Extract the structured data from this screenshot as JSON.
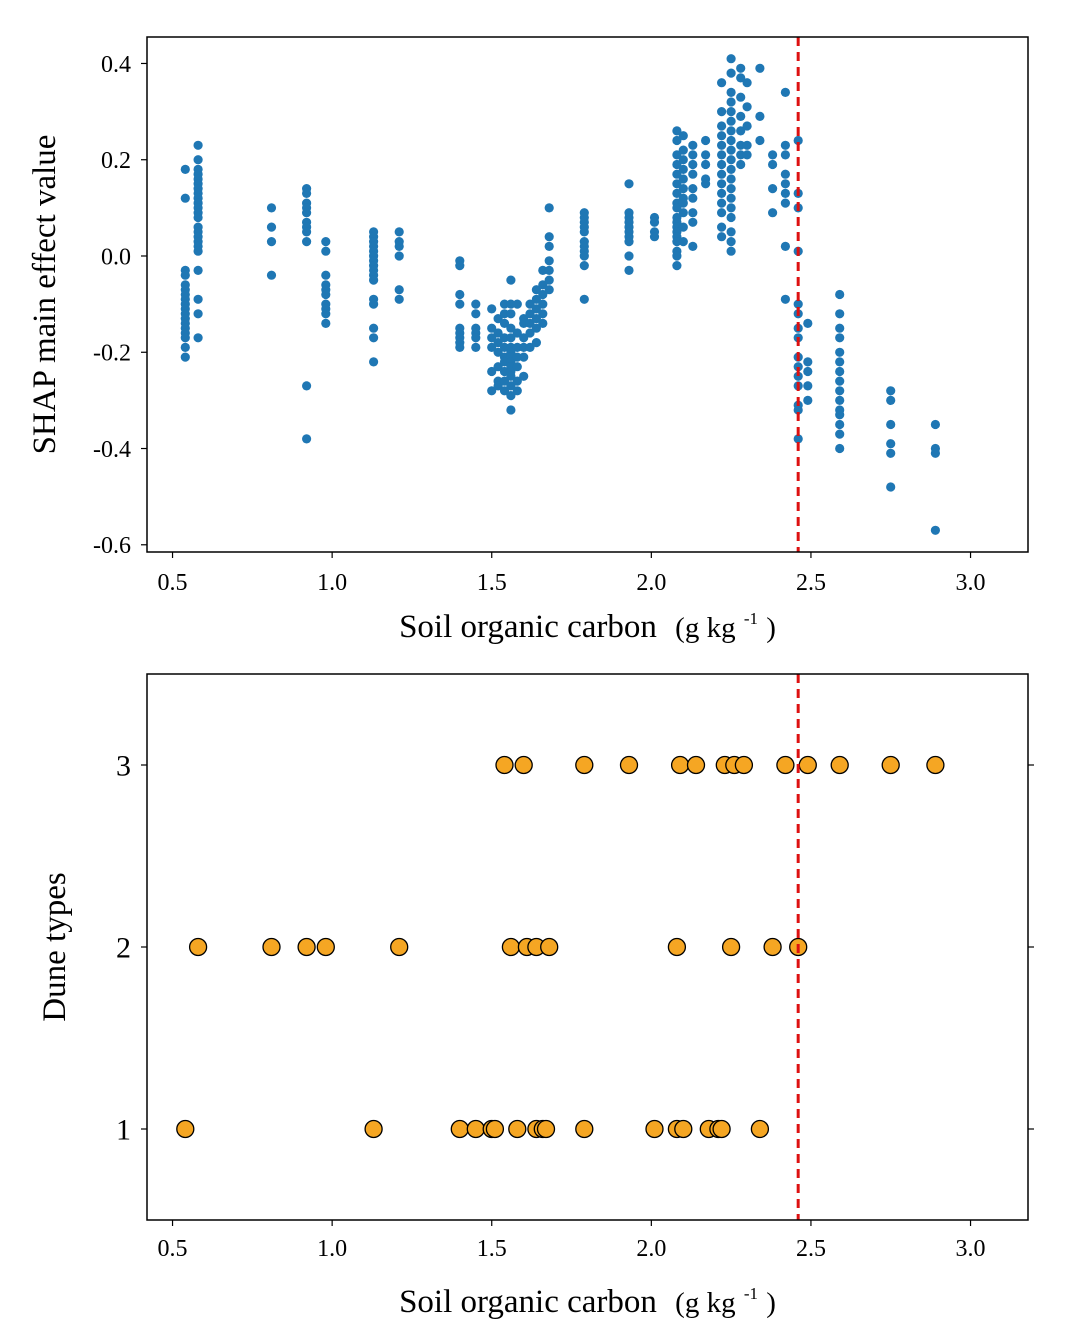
{
  "chart_data": [
    {
      "type": "scatter",
      "title": "",
      "xlabel": "Soil organic carbon",
      "xunit": "(g kg",
      "xunit_sup": "-1",
      "xunit_close": ")",
      "ylabel": "SHAP main effect value",
      "xlim": [
        0.42,
        3.18
      ],
      "ylim": [
        -0.615,
        0.455
      ],
      "xticks": [
        0.5,
        1.0,
        1.5,
        2.0,
        2.5,
        3.0
      ],
      "xtick_labels": [
        "0.5",
        "1.0",
        "1.5",
        "2.0",
        "2.5",
        "3.0"
      ],
      "yticks": [
        0.4,
        0.2,
        0.0,
        -0.2,
        -0.4,
        -0.6
      ],
      "ytick_labels": [
        "0.4",
        "0.2",
        "0.0",
        "-0.2",
        "-0.4",
        "-0.6"
      ],
      "threshold_x": 2.46,
      "threshold_color": "#dd1111",
      "point_color": "#1f77b4",
      "grid": false,
      "columns": [
        {
          "x": 0.54,
          "y": [
            0.18,
            0.12,
            -0.03,
            -0.04,
            -0.06,
            -0.07,
            -0.08,
            -0.09,
            -0.1,
            -0.11,
            -0.12,
            -0.13,
            -0.14,
            -0.15,
            -0.16,
            -0.17,
            -0.19,
            -0.21
          ]
        },
        {
          "x": 0.58,
          "y": [
            0.23,
            0.2,
            0.18,
            0.17,
            0.16,
            0.15,
            0.14,
            0.13,
            0.12,
            0.11,
            0.1,
            0.09,
            0.08,
            0.06,
            0.05,
            0.04,
            0.03,
            0.02,
            0.01,
            -0.03,
            -0.09,
            -0.12,
            -0.17
          ]
        },
        {
          "x": 0.81,
          "y": [
            0.1,
            0.06,
            0.03,
            -0.04
          ]
        },
        {
          "x": 0.92,
          "y": [
            0.14,
            0.13,
            0.11,
            0.1,
            0.09,
            0.07,
            0.06,
            0.05,
            0.03,
            -0.27,
            -0.38
          ]
        },
        {
          "x": 0.98,
          "y": [
            0.03,
            0.01,
            -0.04,
            -0.06,
            -0.07,
            -0.08,
            -0.1,
            -0.11,
            -0.12,
            -0.14
          ]
        },
        {
          "x": 1.13,
          "y": [
            0.05,
            0.04,
            0.03,
            0.02,
            0.01,
            0.0,
            -0.01,
            -0.02,
            -0.03,
            -0.04,
            -0.05,
            -0.09,
            -0.1,
            -0.15,
            -0.17,
            -0.22
          ]
        },
        {
          "x": 1.21,
          "y": [
            0.05,
            0.03,
            0.02,
            0.0,
            -0.07,
            -0.09
          ]
        },
        {
          "x": 1.4,
          "y": [
            -0.01,
            -0.02,
            -0.08,
            -0.1,
            -0.15,
            -0.16,
            -0.17,
            -0.18,
            -0.19
          ]
        },
        {
          "x": 1.45,
          "y": [
            -0.1,
            -0.12,
            -0.15,
            -0.16,
            -0.17,
            -0.19
          ]
        },
        {
          "x": 1.5,
          "y": [
            -0.11,
            -0.15,
            -0.17,
            -0.19,
            -0.24,
            -0.28
          ]
        },
        {
          "x": 1.52,
          "y": [
            -0.13,
            -0.16,
            -0.18,
            -0.2,
            -0.23,
            -0.26,
            -0.27
          ]
        },
        {
          "x": 1.54,
          "y": [
            -0.1,
            -0.12,
            -0.14,
            -0.17,
            -0.19,
            -0.21,
            -0.22,
            -0.24,
            -0.26,
            -0.28
          ]
        },
        {
          "x": 1.56,
          "y": [
            -0.05,
            -0.1,
            -0.12,
            -0.15,
            -0.17,
            -0.19,
            -0.2,
            -0.21,
            -0.22,
            -0.23,
            -0.24,
            -0.25,
            -0.27,
            -0.29,
            -0.32
          ]
        },
        {
          "x": 1.58,
          "y": [
            -0.1,
            -0.16,
            -0.19,
            -0.21,
            -0.23,
            -0.26,
            -0.28
          ]
        },
        {
          "x": 1.6,
          "y": [
            -0.13,
            -0.14,
            -0.17,
            -0.19,
            -0.21,
            -0.25
          ]
        },
        {
          "x": 1.62,
          "y": [
            -0.1,
            -0.12,
            -0.14,
            -0.16,
            -0.19
          ]
        },
        {
          "x": 1.64,
          "y": [
            -0.07,
            -0.09,
            -0.11,
            -0.13,
            -0.15,
            -0.18
          ]
        },
        {
          "x": 1.66,
          "y": [
            -0.03,
            -0.06,
            -0.08,
            -0.1,
            -0.12,
            -0.14
          ]
        },
        {
          "x": 1.68,
          "y": [
            0.1,
            0.04,
            0.02,
            -0.01,
            -0.03,
            -0.05,
            -0.07
          ]
        },
        {
          "x": 1.79,
          "y": [
            0.09,
            0.08,
            0.07,
            0.06,
            0.05,
            0.03,
            0.02,
            0.01,
            0.0,
            -0.02,
            -0.09
          ]
        },
        {
          "x": 1.93,
          "y": [
            0.15,
            0.09,
            0.08,
            0.07,
            0.06,
            0.05,
            0.04,
            0.03,
            0.0,
            -0.03
          ]
        },
        {
          "x": 2.01,
          "y": [
            0.08,
            0.07,
            0.05,
            0.04
          ]
        },
        {
          "x": 2.08,
          "y": [
            0.26,
            0.24,
            0.21,
            0.19,
            0.17,
            0.15,
            0.13,
            0.11,
            0.1,
            0.08,
            0.07,
            0.06,
            0.05,
            0.04,
            0.03,
            0.01,
            0.0,
            -0.02
          ]
        },
        {
          "x": 2.1,
          "y": [
            0.25,
            0.22,
            0.2,
            0.18,
            0.16,
            0.14,
            0.12,
            0.11,
            0.09,
            0.06,
            0.03
          ]
        },
        {
          "x": 2.13,
          "y": [
            0.23,
            0.21,
            0.19,
            0.17,
            0.14,
            0.12,
            0.09,
            0.07,
            0.02
          ]
        },
        {
          "x": 2.17,
          "y": [
            0.24,
            0.21,
            0.19,
            0.16,
            0.15
          ]
        },
        {
          "x": 2.22,
          "y": [
            0.36,
            0.3,
            0.27,
            0.25,
            0.23,
            0.21,
            0.19,
            0.17,
            0.15,
            0.13,
            0.11,
            0.09,
            0.06,
            0.04
          ]
        },
        {
          "x": 2.25,
          "y": [
            0.41,
            0.38,
            0.34,
            0.32,
            0.3,
            0.28,
            0.26,
            0.24,
            0.22,
            0.2,
            0.18,
            0.16,
            0.14,
            0.12,
            0.1,
            0.08,
            0.05,
            0.03,
            0.01
          ]
        },
        {
          "x": 2.28,
          "y": [
            0.39,
            0.37,
            0.33,
            0.29,
            0.26,
            0.23,
            0.21,
            0.19
          ]
        },
        {
          "x": 2.3,
          "y": [
            0.36,
            0.31,
            0.27,
            0.23,
            0.21
          ]
        },
        {
          "x": 2.34,
          "y": [
            0.39,
            0.29,
            0.24
          ]
        },
        {
          "x": 2.38,
          "y": [
            0.21,
            0.19,
            0.14,
            0.09
          ]
        },
        {
          "x": 2.42,
          "y": [
            0.34,
            0.23,
            0.21,
            0.17,
            0.15,
            0.13,
            0.11,
            0.02,
            -0.09
          ]
        },
        {
          "x": 2.46,
          "y": [
            0.24,
            0.13,
            0.1,
            0.01,
            -0.1,
            -0.12,
            -0.15,
            -0.17,
            -0.21,
            -0.23,
            -0.25,
            -0.27,
            -0.31,
            -0.32,
            -0.38
          ]
        },
        {
          "x": 2.49,
          "y": [
            -0.14,
            -0.22,
            -0.24,
            -0.27,
            -0.3
          ]
        },
        {
          "x": 2.59,
          "y": [
            -0.08,
            -0.12,
            -0.15,
            -0.17,
            -0.2,
            -0.22,
            -0.24,
            -0.26,
            -0.28,
            -0.3,
            -0.32,
            -0.33,
            -0.35,
            -0.37,
            -0.4
          ]
        },
        {
          "x": 2.75,
          "y": [
            -0.28,
            -0.3,
            -0.35,
            -0.39,
            -0.41,
            -0.48
          ]
        },
        {
          "x": 2.89,
          "y": [
            -0.35,
            -0.4,
            -0.41,
            -0.57
          ]
        }
      ]
    },
    {
      "type": "scatter",
      "title": "",
      "xlabel": "Soil organic carbon",
      "xunit": "(g kg",
      "xunit_sup": "-1",
      "xunit_close": ")",
      "ylabel": "Dune types",
      "xlim": [
        0.42,
        3.18
      ],
      "ylim": [
        0.5,
        3.5
      ],
      "xticks": [
        0.5,
        1.0,
        1.5,
        2.0,
        2.5,
        3.0
      ],
      "xtick_labels": [
        "0.5",
        "1.0",
        "1.5",
        "2.0",
        "2.5",
        "3.0"
      ],
      "yticks": [
        3,
        2,
        1
      ],
      "ytick_labels": [
        "3",
        "2",
        "1"
      ],
      "threshold_x": 2.46,
      "threshold_color": "#dd1111",
      "point_color": "#f5a623",
      "grid": false,
      "series": [
        {
          "y": 3,
          "x": [
            1.54,
            1.6,
            1.79,
            1.93,
            2.09,
            2.14,
            2.23,
            2.26,
            2.29,
            2.42,
            2.49,
            2.59,
            2.75,
            2.89
          ]
        },
        {
          "y": 2,
          "x": [
            0.58,
            0.81,
            0.92,
            0.98,
            1.21,
            1.56,
            1.61,
            1.64,
            1.68,
            2.08,
            2.25,
            2.38,
            2.46
          ]
        },
        {
          "y": 1,
          "x": [
            0.54,
            1.13,
            1.4,
            1.45,
            1.5,
            1.51,
            1.58,
            1.64,
            1.66,
            1.67,
            1.79,
            2.01,
            2.08,
            2.1,
            2.18,
            2.21,
            2.22,
            2.34
          ]
        }
      ]
    }
  ]
}
